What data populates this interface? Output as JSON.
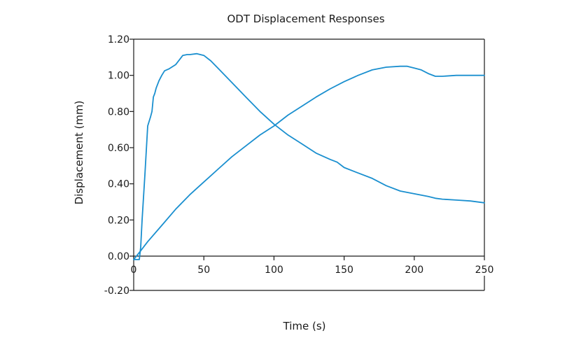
{
  "chart_data": {
    "type": "line",
    "title": "ODT Displacement Responses",
    "xlabel": "Time (s)",
    "ylabel": "Displacement (mm)",
    "xlim": [
      0,
      250
    ],
    "ylim": [
      -0.2,
      1.2
    ],
    "xticks": [
      "0",
      "50",
      "100",
      "150",
      "200",
      "250"
    ],
    "yticks": [
      "-0.20",
      "0.00",
      "0.20",
      "0.40",
      "0.60",
      "0.80",
      "1.00",
      "1.20"
    ],
    "grid": false,
    "series": [
      {
        "color": "#1a8fcf",
        "x": [
          0,
          4,
          5,
          6,
          8,
          10,
          12,
          13,
          14,
          15,
          16,
          18,
          20,
          22,
          25,
          30,
          33,
          35,
          38,
          40,
          45,
          50,
          55,
          60,
          70,
          80,
          90,
          100,
          110,
          120,
          130,
          140,
          145,
          150,
          160,
          170,
          180,
          190,
          200,
          210,
          215,
          220,
          230,
          240,
          250
        ],
        "y": [
          -0.02,
          -0.02,
          0.05,
          0.2,
          0.45,
          0.72,
          0.77,
          0.8,
          0.88,
          0.9,
          0.93,
          0.97,
          1.0,
          1.025,
          1.035,
          1.06,
          1.09,
          1.11,
          1.115,
          1.115,
          1.12,
          1.11,
          1.08,
          1.04,
          0.96,
          0.88,
          0.8,
          0.73,
          0.67,
          0.62,
          0.57,
          0.535,
          0.52,
          0.49,
          0.46,
          0.43,
          0.39,
          0.36,
          0.345,
          0.33,
          0.32,
          0.315,
          0.31,
          0.305,
          0.295
        ]
      },
      {
        "color": "#1a8fcf",
        "x": [
          0,
          5,
          10,
          20,
          30,
          40,
          50,
          60,
          70,
          80,
          90,
          100,
          110,
          120,
          130,
          140,
          150,
          160,
          170,
          180,
          190,
          195,
          200,
          205,
          210,
          215,
          220,
          230,
          240,
          250
        ],
        "y": [
          -0.02,
          0.03,
          0.08,
          0.17,
          0.26,
          0.34,
          0.41,
          0.48,
          0.55,
          0.61,
          0.67,
          0.72,
          0.78,
          0.83,
          0.88,
          0.925,
          0.965,
          1.0,
          1.03,
          1.045,
          1.05,
          1.05,
          1.04,
          1.03,
          1.01,
          0.995,
          0.995,
          1.0,
          1.0,
          1.0
        ]
      }
    ]
  }
}
